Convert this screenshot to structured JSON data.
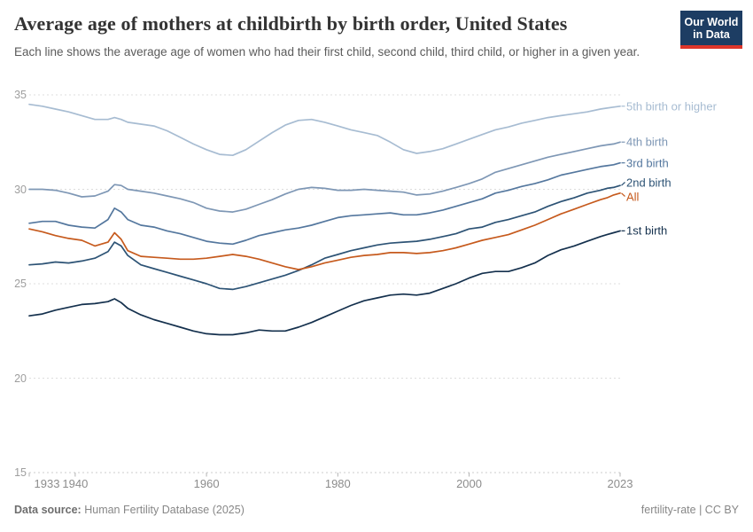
{
  "header": {
    "title": "Average age of mothers at childbirth by birth order, United States",
    "subtitle": "Each line shows the average age of women who had their first child, second child, third child, or higher in a given year.",
    "logo": {
      "line1": "Our World",
      "line2": "in Data",
      "bg_color": "#1d3d63",
      "stripe_color": "#dd352a"
    }
  },
  "footer": {
    "source_label": "Data source:",
    "source_value": "Human Fertility Database (2025)",
    "note_right": "fertility-rate | CC BY"
  },
  "chart_data": {
    "type": "line",
    "title": "Average age of mothers at childbirth by birth order, United States",
    "xlabel": "",
    "ylabel": "",
    "xlim": [
      1933,
      2023
    ],
    "ylim": [
      15,
      35
    ],
    "xticks": [
      1933,
      1940,
      1960,
      1980,
      2000,
      2023
    ],
    "yticks": [
      15,
      20,
      25,
      30,
      35
    ],
    "grid": "horizontal-dashed",
    "legend_position": "right-end-of-line-labels",
    "x": [
      1933,
      1935,
      1937,
      1939,
      1941,
      1943,
      1945,
      1946,
      1947,
      1948,
      1950,
      1952,
      1954,
      1956,
      1958,
      1960,
      1962,
      1964,
      1966,
      1968,
      1970,
      1972,
      1974,
      1976,
      1978,
      1980,
      1982,
      1984,
      1986,
      1988,
      1990,
      1992,
      1994,
      1996,
      1998,
      2000,
      2002,
      2004,
      2006,
      2008,
      2010,
      2012,
      2014,
      2016,
      2018,
      2020,
      2021,
      2022,
      2023
    ],
    "series": [
      {
        "name": "5th birth or higher",
        "color": "#a7bcd2",
        "values": [
          34.5,
          34.4,
          34.25,
          34.1,
          33.9,
          33.7,
          33.7,
          33.8,
          33.7,
          33.55,
          33.45,
          33.35,
          33.1,
          32.75,
          32.4,
          32.1,
          31.85,
          31.8,
          32.1,
          32.55,
          33.0,
          33.4,
          33.65,
          33.7,
          33.55,
          33.35,
          33.15,
          33.0,
          32.85,
          32.5,
          32.1,
          31.9,
          32.0,
          32.15,
          32.4,
          32.65,
          32.9,
          33.15,
          33.3,
          33.5,
          33.65,
          33.8,
          33.9,
          34.0,
          34.1,
          34.25,
          34.3,
          34.35,
          34.4
        ]
      },
      {
        "name": "4th birth",
        "color": "#7e97b5",
        "values": [
          30.0,
          30.0,
          29.95,
          29.8,
          29.6,
          29.65,
          29.9,
          30.25,
          30.2,
          30.0,
          29.9,
          29.8,
          29.65,
          29.5,
          29.3,
          29.0,
          28.85,
          28.8,
          28.95,
          29.2,
          29.45,
          29.75,
          30.0,
          30.1,
          30.05,
          29.95,
          29.95,
          30.0,
          29.95,
          29.9,
          29.85,
          29.7,
          29.75,
          29.9,
          30.1,
          30.3,
          30.55,
          30.9,
          31.1,
          31.3,
          31.5,
          31.7,
          31.85,
          32.0,
          32.15,
          32.3,
          32.35,
          32.4,
          32.5
        ]
      },
      {
        "name": "3rd birth",
        "color": "#54779e",
        "values": [
          28.2,
          28.3,
          28.3,
          28.1,
          28.0,
          27.95,
          28.4,
          29.0,
          28.8,
          28.4,
          28.1,
          28.0,
          27.8,
          27.65,
          27.45,
          27.25,
          27.15,
          27.1,
          27.3,
          27.55,
          27.7,
          27.85,
          27.95,
          28.1,
          28.3,
          28.5,
          28.6,
          28.65,
          28.7,
          28.75,
          28.65,
          28.65,
          28.75,
          28.9,
          29.1,
          29.3,
          29.5,
          29.8,
          29.95,
          30.15,
          30.3,
          30.5,
          30.75,
          30.9,
          31.05,
          31.2,
          31.25,
          31.3,
          31.4
        ]
      },
      {
        "name": "2nd birth",
        "color": "#2d5375",
        "values": [
          26.0,
          26.05,
          26.15,
          26.1,
          26.2,
          26.35,
          26.7,
          27.2,
          27.0,
          26.5,
          26.0,
          25.8,
          25.6,
          25.4,
          25.2,
          25.0,
          24.75,
          24.7,
          24.85,
          25.05,
          25.25,
          25.45,
          25.7,
          26.0,
          26.35,
          26.55,
          26.75,
          26.9,
          27.05,
          27.15,
          27.2,
          27.25,
          27.35,
          27.5,
          27.65,
          27.9,
          28.0,
          28.25,
          28.4,
          28.6,
          28.8,
          29.1,
          29.35,
          29.55,
          29.8,
          29.95,
          30.05,
          30.1,
          30.2
        ]
      },
      {
        "name": "All",
        "color": "#c65a1d",
        "values": [
          27.9,
          27.75,
          27.55,
          27.4,
          27.3,
          27.0,
          27.2,
          27.7,
          27.35,
          26.75,
          26.45,
          26.4,
          26.35,
          26.3,
          26.3,
          26.35,
          26.45,
          26.55,
          26.45,
          26.3,
          26.1,
          25.9,
          25.75,
          25.9,
          26.1,
          26.25,
          26.4,
          26.5,
          26.55,
          26.65,
          26.65,
          26.6,
          26.65,
          26.75,
          26.9,
          27.1,
          27.3,
          27.45,
          27.6,
          27.85,
          28.1,
          28.4,
          28.7,
          28.95,
          29.2,
          29.45,
          29.55,
          29.7,
          29.8
        ]
      },
      {
        "name": "1st birth",
        "color": "#14304d",
        "values": [
          23.3,
          23.4,
          23.6,
          23.75,
          23.9,
          23.95,
          24.05,
          24.2,
          24.0,
          23.7,
          23.35,
          23.1,
          22.9,
          22.7,
          22.5,
          22.35,
          22.3,
          22.3,
          22.4,
          22.55,
          22.5,
          22.5,
          22.7,
          22.95,
          23.25,
          23.55,
          23.85,
          24.1,
          24.25,
          24.4,
          24.45,
          24.4,
          24.5,
          24.75,
          25.0,
          25.3,
          25.55,
          25.65,
          25.65,
          25.85,
          26.1,
          26.5,
          26.8,
          27.0,
          27.25,
          27.5,
          27.6,
          27.7,
          27.8
        ]
      }
    ]
  }
}
